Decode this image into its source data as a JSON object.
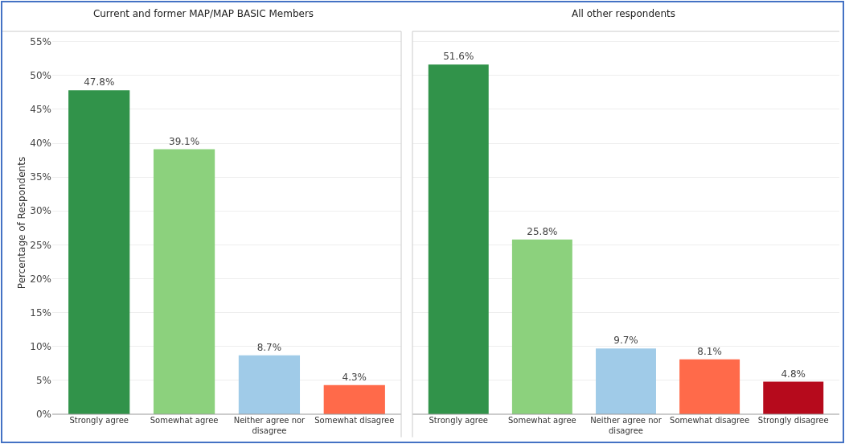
{
  "chart_data": [
    {
      "type": "bar",
      "title": "Current and former MAP/MAP BASIC Members",
      "ylabel": "Percentage of Respondents",
      "categories": [
        "Strongly agree",
        "Somewhat agree",
        "Neither agree nor disagree",
        "Somewhat disagree"
      ],
      "values": [
        47.8,
        39.1,
        8.7,
        4.3
      ],
      "value_labels": [
        "47.8%",
        "39.1%",
        "8.7%",
        "4.3%"
      ],
      "colors": [
        "#31934a",
        "#8cd17d",
        "#a0cbe8",
        "#ff6a4a"
      ],
      "ylim": [
        0,
        56.5
      ],
      "yticks": [
        {
          "value": 0,
          "label": "0%"
        },
        {
          "value": 5,
          "label": "5%"
        },
        {
          "value": 10,
          "label": "10%"
        },
        {
          "value": 15,
          "label": "15%"
        },
        {
          "value": 20,
          "label": "20%"
        },
        {
          "value": 25,
          "label": "25%"
        },
        {
          "value": 30,
          "label": "30%"
        },
        {
          "value": 35,
          "label": "35%"
        },
        {
          "value": 40,
          "label": "40%"
        },
        {
          "value": 45,
          "label": "45%"
        },
        {
          "value": 50,
          "label": "50%"
        },
        {
          "value": 55,
          "label": "55%"
        }
      ],
      "grid": "y"
    },
    {
      "type": "bar",
      "title": "All other respondents",
      "categories": [
        "Strongly agree",
        "Somewhat agree",
        "Neither agree nor disagree",
        "Somewhat disagree",
        "Strongly disagree"
      ],
      "values": [
        51.6,
        25.8,
        9.7,
        8.1,
        4.8
      ],
      "value_labels": [
        "51.6%",
        "25.8%",
        "9.7%",
        "8.1%",
        "4.8%"
      ],
      "colors": [
        "#31934a",
        "#8cd17d",
        "#a0cbe8",
        "#ff6a4a",
        "#b60a1c"
      ],
      "ylim": [
        0,
        56.5
      ],
      "yticks": [
        0,
        5,
        10,
        15,
        20,
        25,
        30,
        35,
        40,
        45,
        50,
        55
      ],
      "grid": "y",
      "tick_labels": "x"
    }
  ]
}
